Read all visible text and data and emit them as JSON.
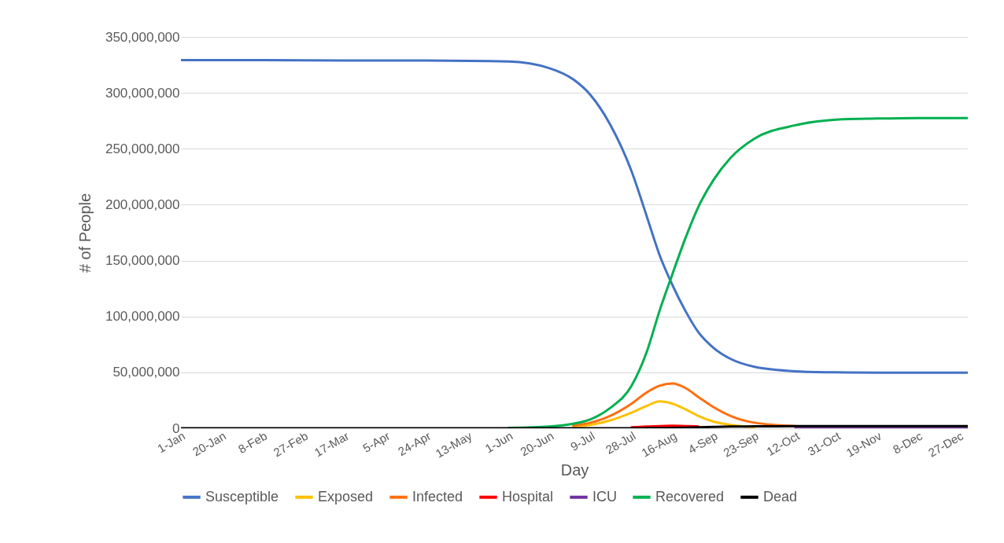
{
  "chart_data": {
    "type": "line",
    "xlabel": "Day",
    "ylabel": "# of People",
    "x": [
      "--01-01",
      "--02-08",
      "--03-17",
      "--04-24",
      "--06-01",
      "--06-20",
      "--07-01",
      "--07-09",
      "--07-18",
      "--07-28",
      "--08-04",
      "--08-10",
      "--08-16",
      "--08-22",
      "--08-28",
      "--09-04",
      "--09-12",
      "--09-23",
      "--10-12",
      "--10-31",
      "--11-19",
      "--12-08",
      "--12-31"
    ],
    "series": [
      {
        "name": "Susceptible",
        "color": "#4472c4",
        "values": [
          329300000,
          329200000,
          329000000,
          328900000,
          328000000,
          322000000,
          312000000,
          298000000,
          272000000,
          230000000,
          190000000,
          155000000,
          128000000,
          105000000,
          86000000,
          72000000,
          62000000,
          55000000,
          51000000,
          50000000,
          49800000,
          49700000,
          49700000
        ]
      },
      {
        "name": "Exposed",
        "color": "#ffc000",
        "values": [
          null,
          null,
          null,
          null,
          null,
          null,
          1500000,
          3000000,
          7000000,
          14000000,
          20000000,
          24000000,
          22000000,
          17000000,
          11000000,
          6000000,
          3000000,
          1000000,
          null,
          null,
          null,
          null,
          null
        ]
      },
      {
        "name": "Infected",
        "color": "#ff6f0f",
        "values": [
          null,
          null,
          null,
          null,
          null,
          null,
          2500000,
          5000000,
          11000000,
          22000000,
          32000000,
          38000000,
          40000000,
          36000000,
          28000000,
          19000000,
          11000000,
          5000000,
          2000000,
          null,
          null,
          null,
          null
        ]
      },
      {
        "name": "Hospital",
        "color": "#ff0000",
        "values": [
          null,
          null,
          null,
          null,
          null,
          null,
          null,
          null,
          null,
          800000,
          1500000,
          2000000,
          2200000,
          2000000,
          1600000,
          null,
          null,
          null,
          null,
          null,
          null,
          null,
          null
        ]
      },
      {
        "name": "ICU",
        "color": "#7030a0",
        "values": [
          null,
          null,
          null,
          null,
          null,
          null,
          null,
          null,
          null,
          null,
          null,
          null,
          null,
          null,
          null,
          null,
          null,
          null,
          0,
          0,
          0,
          0,
          0
        ]
      },
      {
        "name": "Recovered",
        "color": "#00b050",
        "values": [
          null,
          null,
          null,
          null,
          300000,
          1500000,
          4000000,
          8000000,
          18000000,
          38000000,
          68000000,
          105000000,
          138000000,
          170000000,
          198000000,
          222000000,
          242000000,
          259000000,
          271000000,
          276000000,
          277000000,
          277500000,
          277500000
        ]
      },
      {
        "name": "Dead",
        "color": "#000000",
        "values": [
          0,
          0,
          0,
          0,
          0,
          0,
          0,
          0,
          0,
          0,
          100000,
          200000,
          400000,
          600000,
          900000,
          1200000,
          1500000,
          1700000,
          1900000,
          2000000,
          2000000,
          2000000,
          2000000
        ]
      }
    ],
    "xlim": [
      "--01-01",
      "--12-31"
    ],
    "xticks": [
      {
        "value": "--01-01",
        "label": "1-Jan"
      },
      {
        "value": "--01-20",
        "label": "20-Jan"
      },
      {
        "value": "--02-08",
        "label": "8-Feb"
      },
      {
        "value": "--02-27",
        "label": "27-Feb"
      },
      {
        "value": "--03-17",
        "label": "17-Mar"
      },
      {
        "value": "--04-05",
        "label": "5-Apr"
      },
      {
        "value": "--04-24",
        "label": "24-Apr"
      },
      {
        "value": "--05-13",
        "label": "13-May"
      },
      {
        "value": "--06-01",
        "label": "1-Jun"
      },
      {
        "value": "--06-20",
        "label": "20-Jun"
      },
      {
        "value": "--07-09",
        "label": "9-Jul"
      },
      {
        "value": "--07-28",
        "label": "28-Jul"
      },
      {
        "value": "--08-16",
        "label": "16-Aug"
      },
      {
        "value": "--09-04",
        "label": "4-Sep"
      },
      {
        "value": "--09-23",
        "label": "23-Sep"
      },
      {
        "value": "--10-12",
        "label": "12-Oct"
      },
      {
        "value": "--10-31",
        "label": "31-Oct"
      },
      {
        "value": "--11-19",
        "label": "19-Nov"
      },
      {
        "value": "--12-08",
        "label": "8-Dec"
      },
      {
        "value": "--12-27",
        "label": "27-Dec"
      }
    ],
    "ylim": [
      0,
      350000000
    ],
    "yticks": [
      {
        "value": 0,
        "label": "0"
      },
      {
        "value": 50000000,
        "label": "50,000,000"
      },
      {
        "value": 100000000,
        "label": "100,000,000"
      },
      {
        "value": 150000000,
        "label": "150,000,000"
      },
      {
        "value": 200000000,
        "label": "200,000,000"
      },
      {
        "value": 250000000,
        "label": "250,000,000"
      },
      {
        "value": 300000000,
        "label": "300,000,000"
      },
      {
        "value": 350000000,
        "label": "350,000,000"
      }
    ],
    "grid": "y",
    "legend": "bottom",
    "marker": "none",
    "line_style": "solid"
  }
}
